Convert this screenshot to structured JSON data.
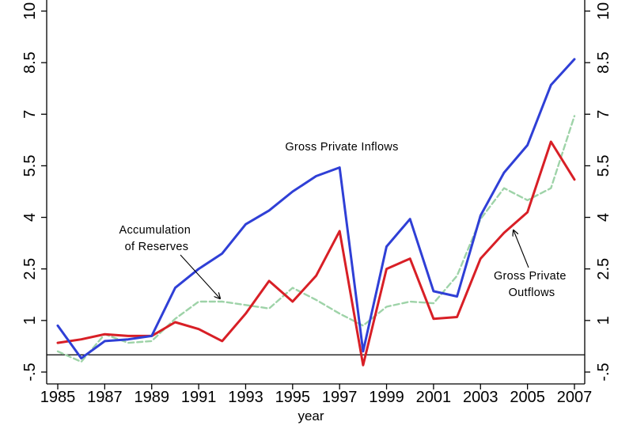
{
  "chart_data": {
    "type": "line",
    "title": "",
    "xlabel": "year",
    "ylabel": "",
    "xlim": [
      1985,
      2007
    ],
    "ylim": [
      -1,
      10
    ],
    "x_ticks": [
      1985,
      1987,
      1989,
      1991,
      1993,
      1995,
      1997,
      1999,
      2001,
      2003,
      2005,
      2007
    ],
    "x_tick_labels": [
      "1985",
      "1987",
      "1989",
      "1991",
      "1993",
      "1995",
      "1997",
      "1999",
      "2001",
      "2003",
      "2005",
      "2007"
    ],
    "y_ticks": [
      -0.5,
      1,
      2.5,
      4,
      5.5,
      7,
      8.5,
      10
    ],
    "y_tick_labels": [
      "-.5",
      "1",
      "2.5",
      "4",
      "5.5",
      "7",
      "8.5",
      "10"
    ],
    "reference_line": 0,
    "x": [
      1985,
      1986,
      1987,
      1988,
      1989,
      1990,
      1991,
      1992,
      1993,
      1994,
      1995,
      1996,
      1997,
      1998,
      1999,
      2000,
      2001,
      2002,
      2003,
      2004,
      2005,
      2006,
      2007
    ],
    "series": [
      {
        "name": "Gross Private Inflows",
        "color": "#2f3fd6",
        "style": "solid",
        "values": [
          0.85,
          -0.1,
          0.4,
          0.45,
          0.55,
          1.95,
          2.5,
          2.95,
          3.8,
          4.2,
          4.75,
          5.2,
          5.45,
          0.1,
          3.15,
          3.95,
          1.85,
          1.7,
          4.05,
          5.3,
          6.1,
          7.85,
          8.6
        ]
      },
      {
        "name": "Gross Private Outflows",
        "color": "#d81f26",
        "style": "solid",
        "values": [
          0.35,
          0.45,
          0.6,
          0.55,
          0.55,
          0.95,
          0.75,
          0.4,
          1.2,
          2.15,
          1.55,
          2.3,
          3.6,
          -0.3,
          2.5,
          2.8,
          1.05,
          1.1,
          2.8,
          3.55,
          4.15,
          6.2,
          5.1
        ]
      },
      {
        "name": "Accumulation of Reserves",
        "color": "#9ed3a8",
        "style": "dashed",
        "values": [
          0.1,
          -0.2,
          0.6,
          0.35,
          0.4,
          1.05,
          1.55,
          1.55,
          1.45,
          1.35,
          1.95,
          1.6,
          1.2,
          0.85,
          1.4,
          1.55,
          1.5,
          2.3,
          3.95,
          4.85,
          4.5,
          4.85,
          6.95
        ]
      }
    ],
    "annotations": [
      {
        "id": "inflows",
        "lines": [
          "Gross Private Inflows"
        ]
      },
      {
        "id": "reserves",
        "lines": [
          "Accumulation",
          "of Reserves"
        ]
      },
      {
        "id": "outflows",
        "lines": [
          "Gross Private",
          "Outflows"
        ]
      }
    ]
  }
}
